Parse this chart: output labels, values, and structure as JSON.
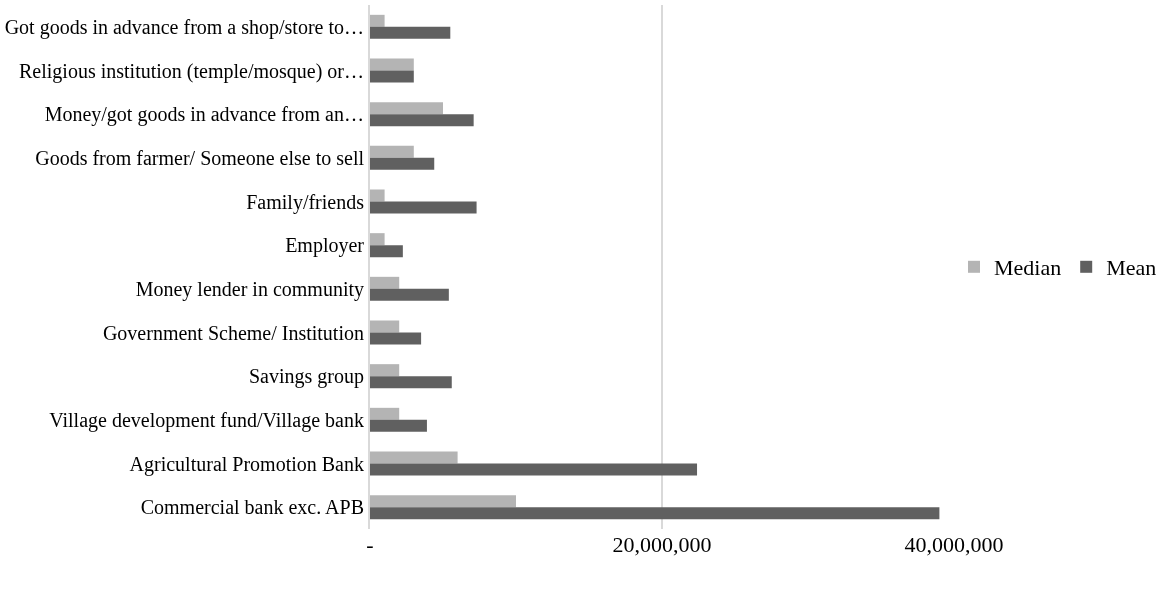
{
  "chart_data": {
    "type": "bar",
    "orientation": "horizontal",
    "categories": [
      "Got goods in advance from a shop/store to…",
      "Religious institution (temple/mosque) or…",
      "Money/got goods in advance from an…",
      "Goods from farmer/ Someone else to sell",
      "Family/friends",
      "Employer",
      "Money lender in community",
      "Government Scheme/ Institution",
      "Savings group",
      "Village development fund/Village bank",
      "Agricultural Promotion Bank",
      "Commercial bank exc. APB"
    ],
    "series": [
      {
        "name": "Median",
        "color": "#b4b4b4",
        "values": [
          1000000,
          3000000,
          5000000,
          3000000,
          1000000,
          1000000,
          2000000,
          2000000,
          2000000,
          2000000,
          6000000,
          10000000
        ]
      },
      {
        "name": "Mean",
        "color": "#606060",
        "values": [
          5500000,
          3000000,
          7100000,
          4400000,
          7300000,
          2250000,
          5400000,
          3500000,
          5600000,
          3900000,
          22400000,
          39000000
        ]
      }
    ],
    "xlim": [
      0,
      40000000
    ],
    "xticks": [
      {
        "value": 0,
        "label": "-"
      },
      {
        "value": 20000000,
        "label": "20,000,000"
      },
      {
        "value": 40000000,
        "label": "40,000,000"
      }
    ],
    "grid": "x",
    "legend": "right"
  }
}
